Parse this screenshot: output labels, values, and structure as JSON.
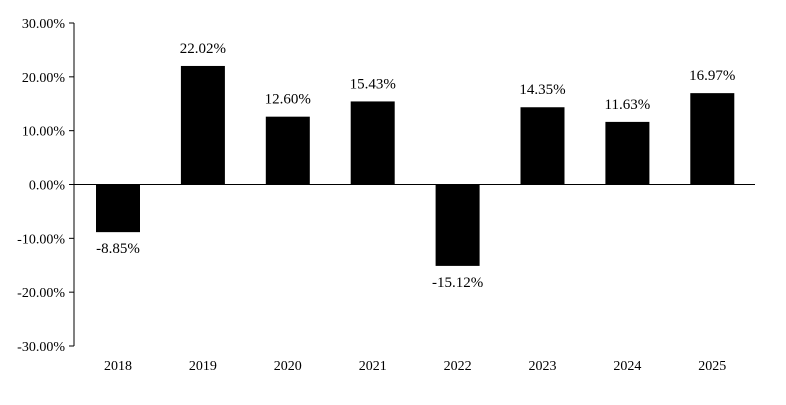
{
  "chart_data": {
    "type": "bar",
    "title": "",
    "xlabel": "",
    "ylabel": "",
    "categories": [
      "2018",
      "2019",
      "2020",
      "2021",
      "2022",
      "2023",
      "2024",
      "2025"
    ],
    "values": [
      -8.85,
      22.02,
      12.6,
      15.43,
      -15.12,
      14.35,
      11.63,
      16.97
    ],
    "data_labels": [
      "-8.85%",
      "22.02%",
      "12.60%",
      "15.43%",
      "-15.12%",
      "14.35%",
      "11.63%",
      "16.97%"
    ],
    "ylim": [
      -30,
      30
    ],
    "yticks": [
      30,
      20,
      10,
      0,
      -10,
      -20,
      -30
    ],
    "ytick_labels": [
      "30.00%",
      "20.00%",
      "10.00%",
      "0.00%",
      "-10.00%",
      "-20.00%",
      "-30.00%"
    ],
    "bar_color": "#000000",
    "grid": false,
    "legend": "none"
  }
}
